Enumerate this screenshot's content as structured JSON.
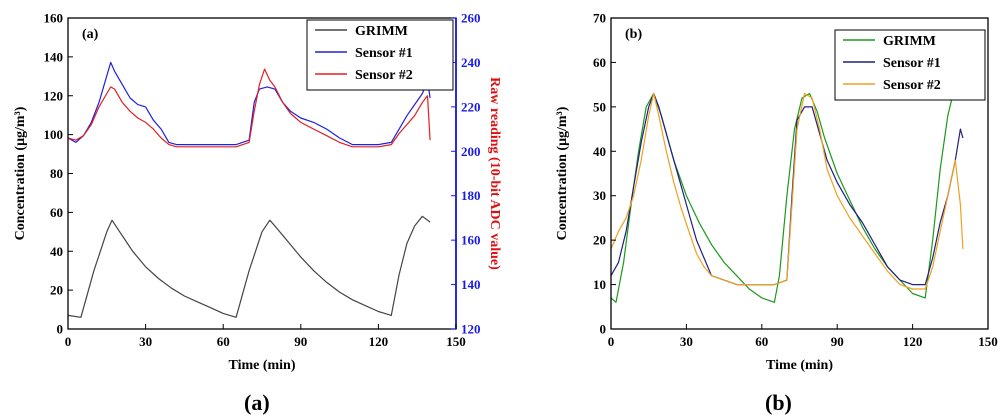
{
  "chart_data": [
    {
      "type": "line",
      "panel_label": "(a)",
      "caption": "(a)",
      "xlabel": "Time (min)",
      "ylabel": "Concentration (μg/m³)",
      "ylabel_right": "Raw reading (10-bit ADC value)",
      "xlim": [
        0,
        150
      ],
      "ylim": [
        0,
        160
      ],
      "ylim_right": [
        120,
        260
      ],
      "x_ticks": [
        "0",
        "30",
        "60",
        "90",
        "120",
        "150"
      ],
      "y_ticks": [
        "0",
        "20",
        "40",
        "60",
        "80",
        "100",
        "120",
        "140",
        "160"
      ],
      "y_ticks_right": [
        "120",
        "140",
        "160",
        "180",
        "200",
        "220",
        "240",
        "260"
      ],
      "grid": false,
      "legend_position": "top-right",
      "series": [
        {
          "name": "GRIMM",
          "color": "#444444",
          "axis": "left",
          "x": [
            0,
            5,
            10,
            15,
            17,
            20,
            25,
            30,
            35,
            40,
            45,
            50,
            55,
            60,
            65,
            70,
            75,
            78,
            80,
            85,
            90,
            95,
            100,
            105,
            110,
            115,
            120,
            125,
            128,
            131,
            134,
            137,
            140
          ],
          "values": [
            7,
            6,
            30,
            50,
            56,
            50,
            40,
            32,
            26,
            21,
            17,
            14,
            11,
            8,
            6,
            30,
            50,
            56,
            53,
            45,
            37,
            30,
            24,
            19,
            15,
            12,
            9,
            7,
            28,
            44,
            53,
            58,
            55
          ]
        },
        {
          "name": "Sensor #1",
          "color": "#2020e0",
          "axis": "right",
          "x": [
            0,
            3,
            6,
            9,
            12,
            15,
            16.5,
            18,
            21,
            24,
            27,
            30,
            33,
            36,
            39,
            42,
            45,
            50,
            55,
            60,
            65,
            70,
            72,
            74,
            77,
            80,
            83,
            86,
            90,
            95,
            100,
            105,
            110,
            115,
            120,
            125,
            128,
            131,
            134,
            137,
            139,
            140
          ],
          "values": [
            206,
            204,
            207,
            213,
            222,
            234,
            240,
            236,
            230,
            224,
            221,
            220,
            214,
            210,
            204,
            203,
            203,
            203,
            203,
            203,
            203,
            205,
            222,
            228,
            229,
            228,
            222,
            218,
            215,
            213,
            210,
            206,
            203,
            203,
            203,
            204,
            210,
            216,
            221,
            226,
            232,
            224
          ]
        },
        {
          "name": "Sensor #2",
          "color": "#e02020",
          "axis": "right",
          "x": [
            0,
            3,
            6,
            9,
            12,
            15,
            16.5,
            18,
            21,
            24,
            27,
            30,
            33,
            36,
            39,
            42,
            45,
            50,
            55,
            60,
            65,
            70,
            72,
            74,
            76,
            78,
            80,
            83,
            86,
            90,
            95,
            100,
            105,
            110,
            115,
            120,
            125,
            128,
            131,
            134,
            137,
            139,
            140
          ],
          "values": [
            206,
            205,
            207,
            212,
            220,
            226,
            229,
            228,
            222,
            218,
            215,
            213,
            210,
            206,
            203,
            202,
            202,
            202,
            202,
            202,
            202,
            204,
            218,
            230,
            237,
            232,
            229,
            222,
            217,
            213,
            210,
            207,
            204,
            202,
            202,
            202,
            203,
            208,
            212,
            216,
            222,
            225,
            205
          ]
        }
      ]
    },
    {
      "type": "line",
      "panel_label": "(b)",
      "caption": "(b)",
      "xlabel": "Time (min)",
      "ylabel": "Concentration (μg/m³)",
      "xlim": [
        0,
        150
      ],
      "ylim": [
        0,
        70
      ],
      "x_ticks": [
        "0",
        "30",
        "60",
        "90",
        "120",
        "150"
      ],
      "y_ticks": [
        "0",
        "10",
        "20",
        "30",
        "40",
        "50",
        "60",
        "70"
      ],
      "grid": false,
      "legend_position": "top-right",
      "series": [
        {
          "name": "GRIMM",
          "color": "#1a9a1a",
          "x": [
            0,
            2,
            5,
            8,
            11,
            14,
            17,
            20,
            25,
            30,
            35,
            40,
            45,
            50,
            55,
            60,
            65,
            67,
            70,
            73,
            76,
            79,
            82,
            85,
            90,
            95,
            100,
            105,
            110,
            115,
            120,
            125,
            128,
            131,
            134,
            137,
            140
          ],
          "values": [
            7,
            6,
            15,
            28,
            40,
            50,
            53,
            48,
            38,
            30,
            24,
            19,
            15,
            12,
            9,
            7,
            6,
            12,
            30,
            45,
            52,
            53,
            49,
            43,
            35,
            29,
            23,
            18,
            14,
            11,
            8,
            7,
            20,
            36,
            48,
            55,
            55
          ]
        },
        {
          "name": "Sensor #1",
          "color": "#202080",
          "x": [
            0,
            3,
            6,
            9,
            12,
            15,
            17,
            19,
            22,
            25,
            28,
            31,
            34,
            37,
            40,
            45,
            50,
            55,
            60,
            65,
            70,
            72,
            74,
            77,
            80,
            83,
            86,
            90,
            95,
            100,
            105,
            110,
            115,
            120,
            125,
            128,
            131,
            134,
            137,
            139,
            140
          ],
          "values": [
            12,
            15,
            22,
            32,
            42,
            50,
            53,
            50,
            44,
            38,
            32,
            26,
            20,
            16,
            12,
            11,
            10,
            10,
            10,
            10,
            11,
            30,
            47,
            50,
            50,
            44,
            38,
            33,
            28,
            24,
            19,
            14,
            11,
            10,
            10,
            16,
            24,
            30,
            38,
            45,
            43
          ]
        },
        {
          "name": "Sensor #2",
          "color": "#f0a020",
          "x": [
            0,
            3,
            6,
            9,
            12,
            15,
            17,
            19,
            22,
            25,
            28,
            31,
            34,
            37,
            40,
            45,
            50,
            55,
            60,
            65,
            70,
            72,
            74,
            77,
            80,
            83,
            86,
            90,
            95,
            100,
            105,
            110,
            115,
            120,
            125,
            128,
            131,
            134,
            137,
            139,
            140
          ],
          "values": [
            18,
            22,
            25,
            30,
            38,
            48,
            53,
            48,
            40,
            33,
            27,
            22,
            17,
            14,
            12,
            11,
            10,
            10,
            10,
            10,
            11,
            28,
            45,
            53,
            52,
            45,
            36,
            30,
            25,
            21,
            17,
            13,
            10,
            9,
            9,
            14,
            22,
            30,
            38,
            28,
            18
          ]
        }
      ]
    }
  ]
}
